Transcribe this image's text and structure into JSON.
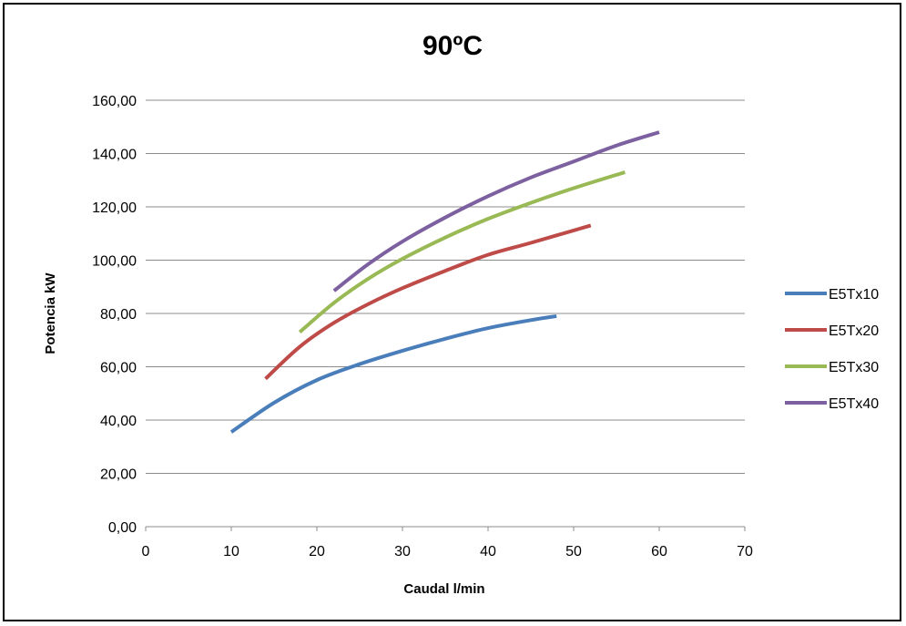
{
  "chart_data": {
    "type": "line",
    "title": "90ºC",
    "xlabel": "Caudal l/min",
    "ylabel": "Potencia kW",
    "xlim": [
      0,
      70
    ],
    "ylim": [
      0,
      160
    ],
    "x_ticks": [
      "0",
      "10",
      "20",
      "30",
      "40",
      "50",
      "60",
      "70"
    ],
    "y_ticks": [
      "0,00",
      "20,00",
      "40,00",
      "60,00",
      "80,00",
      "100,00",
      "120,00",
      "140,00",
      "160,00"
    ],
    "grid": "horizontal",
    "legend_position": "right",
    "series": [
      {
        "name": "E5Tx10",
        "color": "#4a7ebb",
        "x": [
          10,
          15,
          20,
          25,
          30,
          35,
          40,
          45,
          48
        ],
        "y": [
          35.5,
          46.5,
          55,
          61,
          66,
          70.5,
          74.5,
          77.5,
          79
        ]
      },
      {
        "name": "E5Tx20",
        "color": "#be4b48",
        "x": [
          14,
          18,
          22,
          26,
          30,
          35,
          40,
          45,
          52
        ],
        "y": [
          55.5,
          67.5,
          76.5,
          83.5,
          89.5,
          96,
          102,
          106.5,
          113
        ]
      },
      {
        "name": "E5Tx30",
        "color": "#98b954",
        "x": [
          18,
          22,
          26,
          30,
          35,
          40,
          45,
          50,
          56
        ],
        "y": [
          73,
          84,
          93,
          100.5,
          108.5,
          115.5,
          121.5,
          127,
          133
        ]
      },
      {
        "name": "E5Tx40",
        "color": "#7d60a0",
        "x": [
          22,
          26,
          30,
          35,
          40,
          45,
          50,
          55,
          60
        ],
        "y": [
          88.5,
          98.5,
          107,
          116,
          124,
          131,
          137,
          143,
          148
        ]
      }
    ]
  }
}
